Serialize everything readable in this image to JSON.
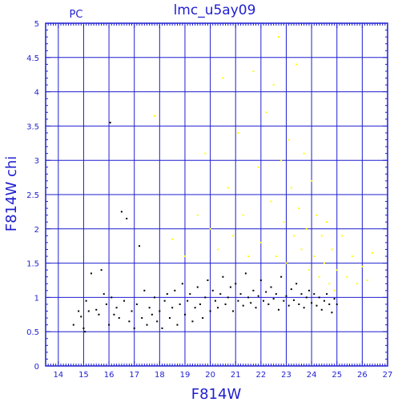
{
  "chart_data": {
    "type": "scatter",
    "title": "lmc_u5ay09",
    "corner_label": "PC",
    "xlabel": "F814W",
    "ylabel": "F814W  chi",
    "xlim": [
      13.5,
      27
    ],
    "ylim": [
      0,
      5
    ],
    "x_ticks": [
      "14",
      "15",
      "16",
      "17",
      "18",
      "19",
      "20",
      "21",
      "22",
      "23",
      "24",
      "25",
      "26",
      "27"
    ],
    "y_ticks": [
      "0",
      "0.5",
      "1",
      "1.5",
      "2",
      "2.5",
      "3",
      "3.5",
      "4",
      "4.5",
      "5"
    ],
    "grid": true,
    "colors": {
      "axes": "#1f1fd0",
      "grid": "#1f1fd0",
      "black_points": "#000000",
      "yellow_points": "#ffff00"
    },
    "series": [
      {
        "color": "#000000",
        "points": [
          [
            14.6,
            0.6
          ],
          [
            14.8,
            0.8
          ],
          [
            14.9,
            0.72
          ],
          [
            15.0,
            0.55
          ],
          [
            15.05,
            0.5
          ],
          [
            15.1,
            0.95
          ],
          [
            15.2,
            0.8
          ],
          [
            15.3,
            1.35
          ],
          [
            15.5,
            0.82
          ],
          [
            15.6,
            0.75
          ],
          [
            15.7,
            1.4
          ],
          [
            15.8,
            1.05
          ],
          [
            15.9,
            0.9
          ],
          [
            16.0,
            0.6
          ],
          [
            16.05,
            3.55
          ],
          [
            16.1,
            1.0
          ],
          [
            16.2,
            0.75
          ],
          [
            16.3,
            0.85
          ],
          [
            16.4,
            0.7
          ],
          [
            16.5,
            2.25
          ],
          [
            16.6,
            0.95
          ],
          [
            16.7,
            2.15
          ],
          [
            16.8,
            0.65
          ],
          [
            16.9,
            0.8
          ],
          [
            17.0,
            0.55
          ],
          [
            17.1,
            0.9
          ],
          [
            17.2,
            1.75
          ],
          [
            17.3,
            0.7
          ],
          [
            17.4,
            1.1
          ],
          [
            17.5,
            0.6
          ],
          [
            17.6,
            0.85
          ],
          [
            17.7,
            0.75
          ],
          [
            17.8,
            1.0
          ],
          [
            17.9,
            0.65
          ],
          [
            18.0,
            0.8
          ],
          [
            18.1,
            0.55
          ],
          [
            18.2,
            0.95
          ],
          [
            18.3,
            1.05
          ],
          [
            18.4,
            0.7
          ],
          [
            18.5,
            0.85
          ],
          [
            18.6,
            1.1
          ],
          [
            18.7,
            0.6
          ],
          [
            18.8,
            0.9
          ],
          [
            18.9,
            1.2
          ],
          [
            19.0,
            0.75
          ],
          [
            19.1,
            0.95
          ],
          [
            19.2,
            1.05
          ],
          [
            19.3,
            0.65
          ],
          [
            19.4,
            0.85
          ],
          [
            19.5,
            1.15
          ],
          [
            19.6,
            0.9
          ],
          [
            19.7,
            0.7
          ],
          [
            19.8,
            1.0
          ],
          [
            19.9,
            1.25
          ],
          [
            20.0,
            0.8
          ],
          [
            20.1,
            1.1
          ],
          [
            20.2,
            0.95
          ],
          [
            20.3,
            0.85
          ],
          [
            20.4,
            1.05
          ],
          [
            20.5,
            1.3
          ],
          [
            20.6,
            0.9
          ],
          [
            20.7,
            1.0
          ],
          [
            20.8,
            1.15
          ],
          [
            20.9,
            0.8
          ],
          [
            21.0,
            1.2
          ],
          [
            21.1,
            0.95
          ],
          [
            21.2,
            1.05
          ],
          [
            21.3,
            0.88
          ],
          [
            21.4,
            1.35
          ],
          [
            21.5,
            1.0
          ],
          [
            21.6,
            0.92
          ],
          [
            21.7,
            1.1
          ],
          [
            21.8,
            0.85
          ],
          [
            21.9,
            1.02
          ],
          [
            22.0,
            1.25
          ],
          [
            22.1,
            0.95
          ],
          [
            22.2,
            1.08
          ],
          [
            22.3,
            0.9
          ],
          [
            22.4,
            1.15
          ],
          [
            22.5,
            0.98
          ],
          [
            22.6,
            1.05
          ],
          [
            22.7,
            0.82
          ],
          [
            22.8,
            1.3
          ],
          [
            22.9,
            0.95
          ],
          [
            23.0,
            1.02
          ],
          [
            23.1,
            0.88
          ],
          [
            23.2,
            1.12
          ],
          [
            23.3,
            0.96
          ],
          [
            23.4,
            1.2
          ],
          [
            23.5,
            0.9
          ],
          [
            23.6,
            1.05
          ],
          [
            23.7,
            0.85
          ],
          [
            23.8,
            1.0
          ],
          [
            23.9,
            1.1
          ],
          [
            24.0,
            0.92
          ],
          [
            24.1,
            1.05
          ],
          [
            24.2,
            0.88
          ],
          [
            24.3,
            1.0
          ],
          [
            24.4,
            0.82
          ],
          [
            24.5,
            0.95
          ],
          [
            24.6,
            1.05
          ],
          [
            24.7,
            0.9
          ],
          [
            24.8,
            0.78
          ],
          [
            24.9,
            0.98
          ],
          [
            25.0,
            0.9
          ]
        ]
      },
      {
        "color": "#ffff00",
        "points": [
          [
            17.8,
            3.65
          ],
          [
            18.5,
            1.85
          ],
          [
            19.0,
            1.6
          ],
          [
            19.5,
            2.2
          ],
          [
            19.8,
            3.1
          ],
          [
            20.0,
            2.0
          ],
          [
            20.3,
            1.7
          ],
          [
            20.5,
            4.2
          ],
          [
            20.7,
            2.6
          ],
          [
            20.9,
            1.9
          ],
          [
            21.1,
            3.4
          ],
          [
            21.3,
            2.2
          ],
          [
            21.5,
            1.6
          ],
          [
            21.7,
            4.3
          ],
          [
            21.9,
            2.9
          ],
          [
            22.0,
            1.8
          ],
          [
            22.2,
            3.7
          ],
          [
            22.4,
            2.4
          ],
          [
            22.5,
            4.1
          ],
          [
            22.6,
            1.6
          ],
          [
            22.7,
            4.8
          ],
          [
            22.8,
            3.0
          ],
          [
            22.9,
            2.1
          ],
          [
            23.0,
            1.5
          ],
          [
            23.1,
            3.3
          ],
          [
            23.2,
            2.6
          ],
          [
            23.3,
            1.9
          ],
          [
            23.4,
            4.4
          ],
          [
            23.5,
            2.3
          ],
          [
            23.6,
            1.7
          ],
          [
            23.7,
            3.1
          ],
          [
            23.8,
            2.0
          ],
          [
            23.9,
            1.4
          ],
          [
            24.0,
            2.7
          ],
          [
            24.1,
            1.6
          ],
          [
            24.2,
            2.2
          ],
          [
            24.3,
            1.3
          ],
          [
            24.4,
            1.9
          ],
          [
            24.5,
            1.5
          ],
          [
            24.6,
            2.1
          ],
          [
            24.7,
            1.2
          ],
          [
            24.8,
            1.7
          ],
          [
            24.9,
            1.1
          ],
          [
            25.0,
            1.4
          ],
          [
            25.2,
            1.9
          ],
          [
            25.4,
            1.3
          ],
          [
            25.6,
            1.6
          ],
          [
            25.8,
            1.2
          ],
          [
            26.0,
            1.45
          ],
          [
            26.2,
            1.25
          ],
          [
            26.4,
            1.65
          ]
        ]
      }
    ]
  }
}
